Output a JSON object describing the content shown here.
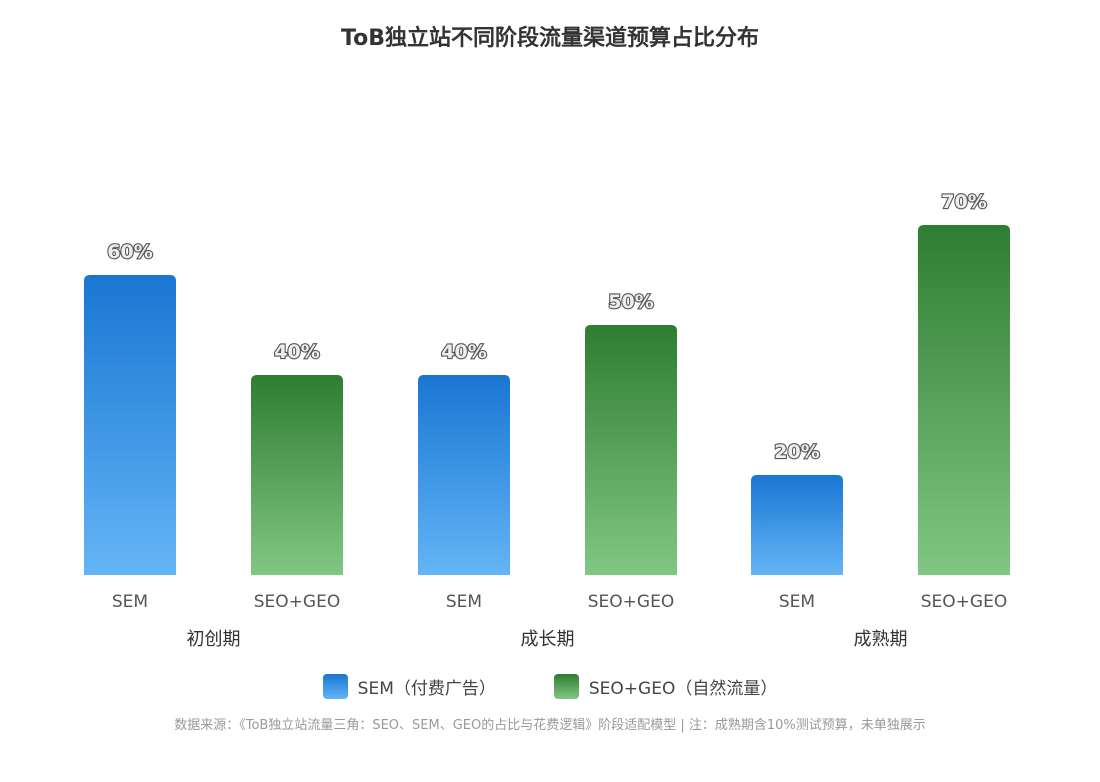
{
  "chart_data": {
    "type": "bar",
    "title": "ToB独立站不同阶段流量渠道预算占比分布",
    "ylim": [
      0,
      100
    ],
    "grid": false,
    "legend_position": "bottom-center",
    "groups": [
      {
        "name": "初创期",
        "bars": [
          {
            "category": "SEM",
            "series": "SEM（付费广告）",
            "value": 60,
            "label": "60%"
          },
          {
            "category": "SEO+GEO",
            "series": "SEO+GEO（自然流量）",
            "value": 40,
            "label": "40%"
          }
        ]
      },
      {
        "name": "成长期",
        "bars": [
          {
            "category": "SEM",
            "series": "SEM（付费广告）",
            "value": 40,
            "label": "40%"
          },
          {
            "category": "SEO+GEO",
            "series": "SEO+GEO（自然流量）",
            "value": 50,
            "label": "50%"
          }
        ]
      },
      {
        "name": "成熟期",
        "bars": [
          {
            "category": "SEM",
            "series": "SEM（付费广告）",
            "value": 20,
            "label": "20%"
          },
          {
            "category": "SEO+GEO",
            "series": "SEO+GEO（自然流量）",
            "value": 70,
            "label": "70%"
          }
        ]
      }
    ],
    "legend": [
      {
        "name": "SEM（付费广告）",
        "color_top": "#1976d2",
        "color_bottom": "#64b5f6"
      },
      {
        "name": "SEO+GEO（自然流量）",
        "color_top": "#2e7d32",
        "color_bottom": "#81c784"
      }
    ],
    "footnote": "数据来源：《ToB独立站流量三角：SEO、SEM、GEO的占比与花费逻辑》阶段适配模型 | 注：成熟期含10%测试预算，未单独展示"
  }
}
